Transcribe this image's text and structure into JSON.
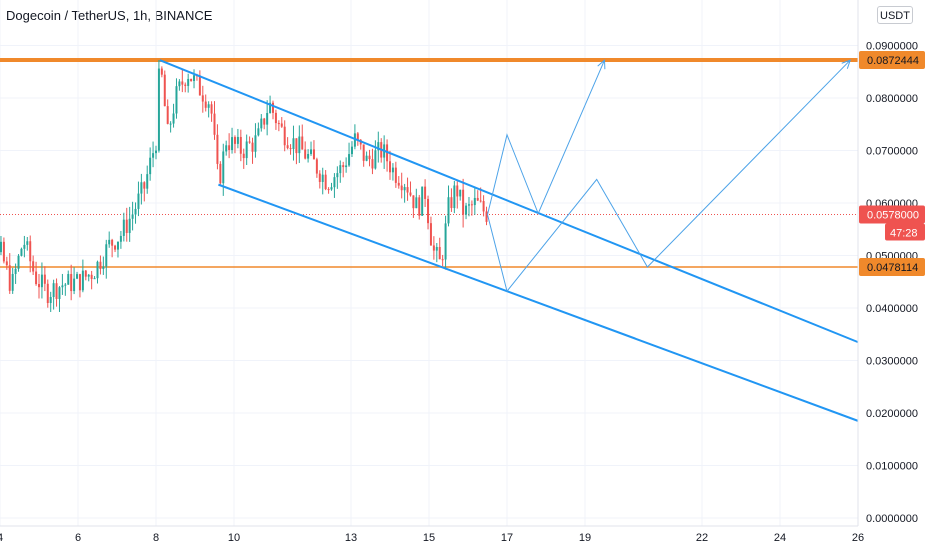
{
  "header": {
    "title": "Dogecoin / TetherUS, 1h, BINANCE",
    "currency": "USDT"
  },
  "colors": {
    "up": "#26a69a",
    "down": "#ef5350",
    "channel": "#2196f3",
    "projection": "#4da3e8",
    "level": "#f0892b",
    "price_badge": "#ef5350",
    "price_line": "#ef5350"
  },
  "chart_data": {
    "type": "candlestick",
    "symbol": "Dogecoin / TetherUS",
    "interval": "1h",
    "exchange": "BINANCE",
    "y_axis": {
      "min": 0,
      "max": 0.09,
      "ticks": [
        "0.0900000",
        "0.0800000",
        "0.0700000",
        "0.0600000",
        "0.0500000",
        "0.0400000",
        "0.0300000",
        "0.0200000",
        "0.0100000",
        "0.0000000"
      ],
      "tick_values": [
        0.09,
        0.08,
        0.07,
        0.06,
        0.05,
        0.04,
        0.03,
        0.02,
        0.01,
        0.0
      ]
    },
    "x_axis": {
      "ticks": [
        "4",
        "6",
        "8",
        "10",
        "13",
        "15",
        "17",
        "19",
        "22",
        "24",
        "26"
      ],
      "tick_days": [
        4,
        6,
        8,
        10,
        13,
        15,
        17,
        19,
        22,
        24,
        26
      ]
    },
    "price_levels": [
      {
        "name": "resistance",
        "value": 0.0872444,
        "label": "0.0872444"
      },
      {
        "name": "support",
        "value": 0.0478114,
        "label": "0.0478114"
      }
    ],
    "current_price": {
      "value": 0.0578,
      "label": "0.0578000",
      "countdown": "47:28"
    },
    "price_path": [
      [
        3.2,
        0.0355
      ],
      [
        3.6,
        0.042
      ],
      [
        4.0,
        0.051
      ],
      [
        4.3,
        0.044
      ],
      [
        4.6,
        0.053
      ],
      [
        4.9,
        0.046
      ],
      [
        5.2,
        0.043
      ],
      [
        5.6,
        0.0445
      ],
      [
        6.0,
        0.045
      ],
      [
        6.4,
        0.047
      ],
      [
        6.8,
        0.052
      ],
      [
        7.1,
        0.054
      ],
      [
        7.4,
        0.058
      ],
      [
        7.7,
        0.063
      ],
      [
        8.0,
        0.072
      ],
      [
        8.1,
        0.0872
      ],
      [
        8.3,
        0.073
      ],
      [
        8.5,
        0.08
      ],
      [
        8.8,
        0.085
      ],
      [
        9.1,
        0.082
      ],
      [
        9.4,
        0.079
      ],
      [
        9.6,
        0.0635
      ],
      [
        9.8,
        0.072
      ],
      [
        10.2,
        0.07
      ],
      [
        10.6,
        0.072
      ],
      [
        10.9,
        0.079
      ],
      [
        11.2,
        0.074
      ],
      [
        11.6,
        0.071
      ],
      [
        12.0,
        0.068
      ],
      [
        12.4,
        0.064
      ],
      [
        12.8,
        0.067
      ],
      [
        13.1,
        0.072
      ],
      [
        13.4,
        0.068
      ],
      [
        13.8,
        0.07
      ],
      [
        14.1,
        0.066
      ],
      [
        14.4,
        0.064
      ],
      [
        14.7,
        0.059
      ],
      [
        14.9,
        0.062
      ],
      [
        15.1,
        0.051
      ],
      [
        15.3,
        0.0482
      ],
      [
        15.5,
        0.059
      ],
      [
        15.7,
        0.063
      ],
      [
        15.9,
        0.058
      ],
      [
        16.2,
        0.06
      ],
      [
        16.5,
        0.0578
      ]
    ],
    "channel": {
      "upper": [
        [
          8.1,
          0.0872
        ],
        [
          26.0,
          0.0335
        ]
      ],
      "lower": [
        [
          9.6,
          0.0635
        ],
        [
          26.0,
          0.0185
        ]
      ]
    },
    "projections": [
      [
        [
          16.5,
          0.0578
        ],
        [
          17.0,
          0.073
        ],
        [
          17.8,
          0.058
        ],
        [
          19.5,
          0.0872
        ]
      ],
      [
        [
          16.5,
          0.0578
        ],
        [
          17.0,
          0.0432
        ],
        [
          19.3,
          0.0645
        ],
        [
          20.6,
          0.0478
        ],
        [
          25.8,
          0.0872
        ]
      ]
    ]
  }
}
